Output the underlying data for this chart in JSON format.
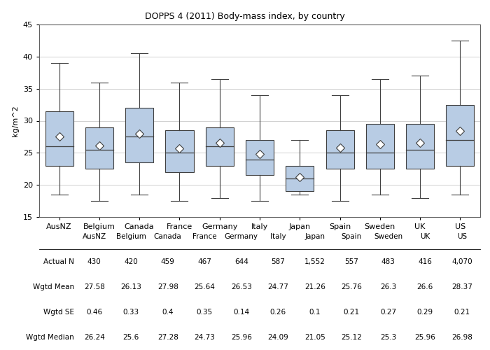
{
  "title": "DOPPS 4 (2011) Body-mass index, by country",
  "ylabel": "kg/m^2",
  "countries": [
    "AusNZ",
    "Belgium",
    "Canada",
    "France",
    "Germany",
    "Italy",
    "Japan",
    "Spain",
    "Sweden",
    "UK",
    "US"
  ],
  "actual_n": [
    "430",
    "420",
    "459",
    "467",
    "644",
    "587",
    "1,552",
    "557",
    "483",
    "416",
    "4,070"
  ],
  "wgtd_mean": [
    27.58,
    26.13,
    27.98,
    25.64,
    26.53,
    24.77,
    21.26,
    25.76,
    26.3,
    26.6,
    28.37
  ],
  "wgtd_se": [
    0.46,
    0.33,
    0.4,
    0.35,
    0.14,
    0.26,
    0.1,
    0.21,
    0.27,
    0.29,
    0.21
  ],
  "wgtd_median": [
    26.24,
    25.6,
    27.28,
    24.73,
    25.96,
    24.09,
    21.05,
    25.12,
    25.3,
    25.96,
    26.98
  ],
  "boxes": [
    {
      "whislo": 18.5,
      "q1": 23.0,
      "med": 26.0,
      "q3": 31.5,
      "whishi": 39.0,
      "mean": 27.58
    },
    {
      "whislo": 17.5,
      "q1": 22.5,
      "med": 25.5,
      "q3": 29.0,
      "whishi": 36.0,
      "mean": 26.13
    },
    {
      "whislo": 18.5,
      "q1": 23.5,
      "med": 27.5,
      "q3": 32.0,
      "whishi": 40.5,
      "mean": 27.98
    },
    {
      "whislo": 17.5,
      "q1": 22.0,
      "med": 25.0,
      "q3": 28.5,
      "whishi": 36.0,
      "mean": 25.64
    },
    {
      "whislo": 18.0,
      "q1": 23.0,
      "med": 26.0,
      "q3": 29.0,
      "whishi": 36.5,
      "mean": 26.53
    },
    {
      "whislo": 17.5,
      "q1": 21.5,
      "med": 24.0,
      "q3": 27.0,
      "whishi": 34.0,
      "mean": 24.77
    },
    {
      "whislo": 18.5,
      "q1": 19.0,
      "med": 21.0,
      "q3": 23.0,
      "whishi": 27.0,
      "mean": 21.26
    },
    {
      "whislo": 17.5,
      "q1": 22.5,
      "med": 25.0,
      "q3": 28.5,
      "whishi": 34.0,
      "mean": 25.76
    },
    {
      "whislo": 18.5,
      "q1": 22.5,
      "med": 25.0,
      "q3": 29.5,
      "whishi": 36.5,
      "mean": 26.3
    },
    {
      "whislo": 18.0,
      "q1": 22.5,
      "med": 25.5,
      "q3": 29.5,
      "whishi": 37.0,
      "mean": 26.6
    },
    {
      "whislo": 18.5,
      "q1": 23.0,
      "med": 27.0,
      "q3": 32.5,
      "whishi": 42.5,
      "mean": 28.37
    }
  ],
  "ylim": [
    15,
    45
  ],
  "yticks": [
    15,
    20,
    25,
    30,
    35,
    40,
    45
  ],
  "box_facecolor": "#b8cce4",
  "box_edgecolor": "#404040",
  "whisker_color": "#404040",
  "median_color": "#404040",
  "mean_marker_color": "white",
  "mean_marker_edgecolor": "#404040",
  "grid_color": "#d0d0d0",
  "background_color": "#ffffff",
  "table_rows": [
    "Actual N",
    "Wgtd Mean",
    "Wgtd SE",
    "Wgtd Median"
  ]
}
